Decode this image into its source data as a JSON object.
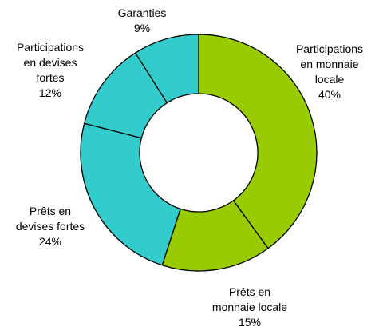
{
  "chart_data": {
    "type": "pie",
    "donut": true,
    "legend": "none",
    "slices": [
      {
        "label_lines": [
          "Participations",
          "en monnaie",
          "locale"
        ],
        "value_text": "40%",
        "value": 40,
        "color": "#99cc00"
      },
      {
        "label_lines": [
          "Prêts en",
          "monnaie locale"
        ],
        "value_text": "15%",
        "value": 15,
        "color": "#99cc00"
      },
      {
        "label_lines": [
          "Prêts en",
          "devises fortes"
        ],
        "value_text": "24%",
        "value": 24,
        "color": "#33cccc"
      },
      {
        "label_lines": [
          "Participations",
          "en devises",
          "fortes"
        ],
        "value_text": "12%",
        "value": 12,
        "color": "#33cccc"
      },
      {
        "label_lines": [
          "Garanties"
        ],
        "value_text": "9%",
        "value": 9,
        "color": "#33cccc"
      }
    ]
  }
}
